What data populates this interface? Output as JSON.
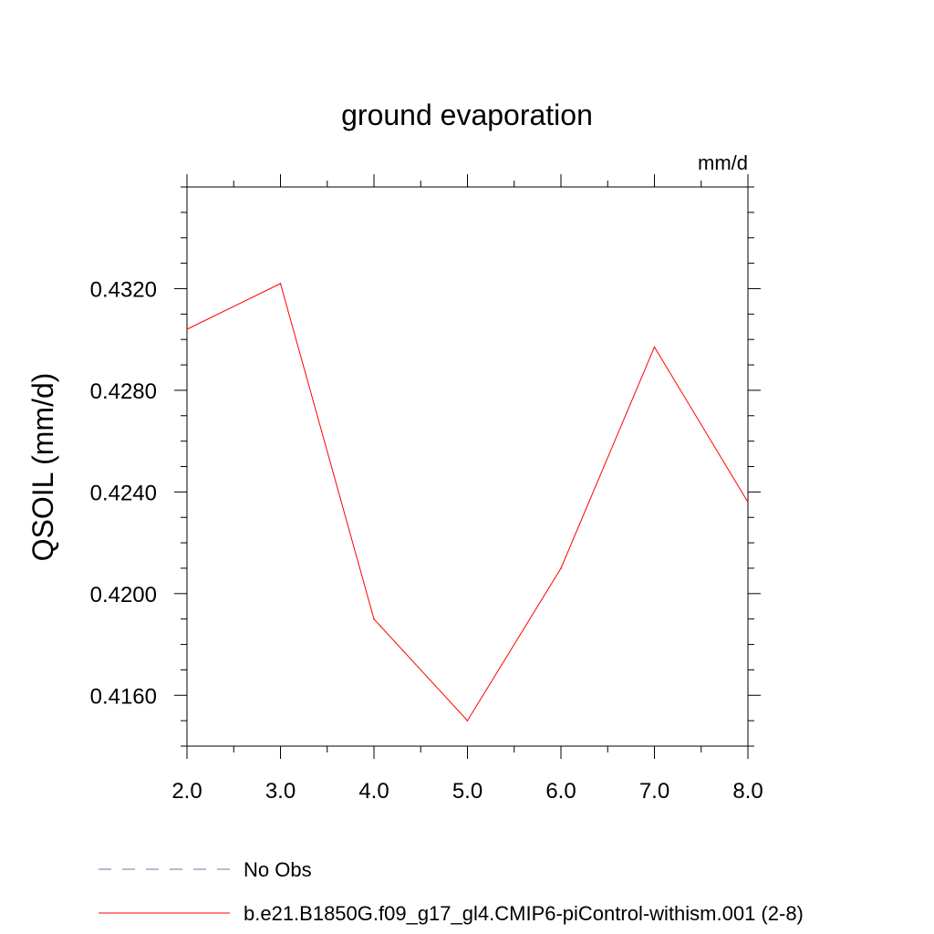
{
  "chart_data": {
    "type": "line",
    "title": "ground evaporation",
    "units_label": "mm/d",
    "ylabel": "QSOIL  (mm/d)",
    "xlabel": "",
    "xlim": [
      2.0,
      8.0
    ],
    "ylim": [
      0.414,
      0.436
    ],
    "x_ticks": [
      2.0,
      3.0,
      4.0,
      5.0,
      6.0,
      7.0,
      8.0
    ],
    "x_tick_labels": [
      "2.0",
      "3.0",
      "4.0",
      "5.0",
      "6.0",
      "7.0",
      "8.0"
    ],
    "y_ticks": [
      0.416,
      0.42,
      0.424,
      0.428,
      0.432
    ],
    "y_tick_labels": [
      "0.4160",
      "0.4200",
      "0.4240",
      "0.4280",
      "0.4320"
    ],
    "grid": false,
    "legend_position": "bottom-left",
    "series": [
      {
        "name": "No Obs",
        "color": "#7b6bb5",
        "dash": "dashed",
        "x": [],
        "y": []
      },
      {
        "name": "b.e21.B1850G.f09_g17_gl4.CMIP6-piControl-withism.001 (2-8)",
        "color": "#ff0000",
        "dash": "solid",
        "x": [
          2.0,
          3.0,
          4.0,
          5.0,
          6.0,
          7.0,
          8.0
        ],
        "y": [
          0.4304,
          0.4322,
          0.419,
          0.415,
          0.421,
          0.4297,
          0.4236
        ]
      }
    ]
  }
}
